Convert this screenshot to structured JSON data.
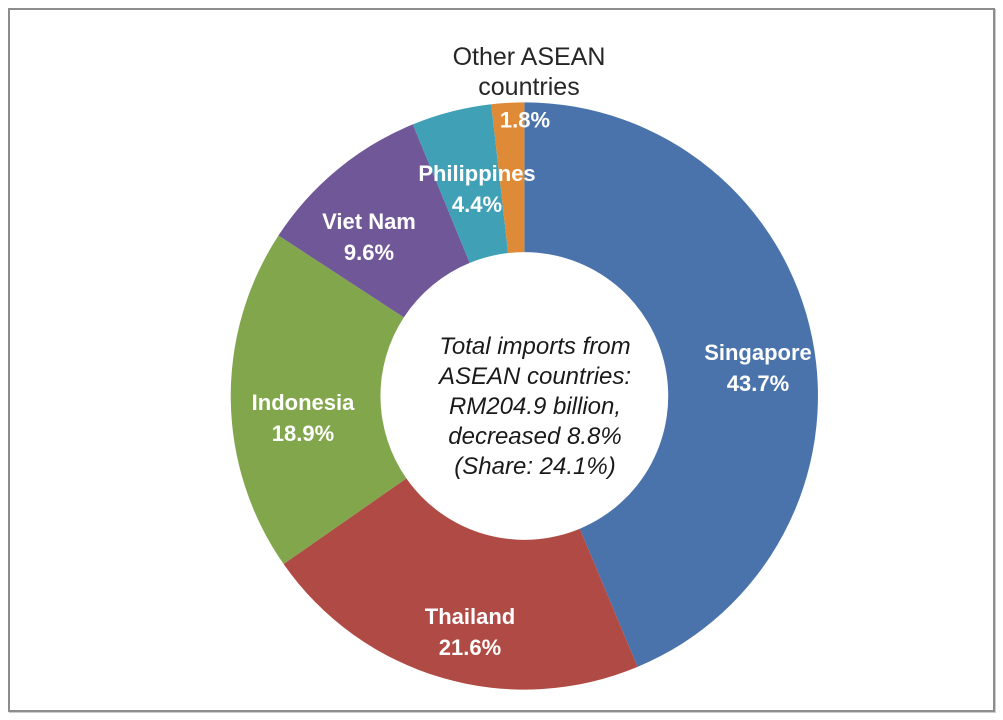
{
  "chart_data": {
    "type": "pie",
    "subtype": "donut",
    "title": "",
    "legend": "none",
    "center_label": {
      "lines": [
        "Total imports from",
        "ASEAN countries:",
        "RM204.9 billion,",
        "decreased 8.8%",
        "(Share: 24.1%)"
      ]
    },
    "slices": [
      {
        "label": "Singapore",
        "value": 43.7,
        "display": "43.7%",
        "color": "#4A73AC",
        "label_inside": true
      },
      {
        "label": "Thailand",
        "value": 21.6,
        "display": "21.6%",
        "color": "#B04A44",
        "label_inside": true
      },
      {
        "label": "Indonesia",
        "value": 18.9,
        "display": "18.9%",
        "color": "#82A64C",
        "label_inside": true
      },
      {
        "label": "Viet Nam",
        "value": 9.6,
        "display": "9.6%",
        "color": "#705797",
        "label_inside": true
      },
      {
        "label": "Philippines",
        "value": 4.4,
        "display": "4.4%",
        "color": "#3FA0B6",
        "label_inside": true
      },
      {
        "label": "Other ASEAN countries",
        "value": 1.8,
        "display": "1.8%",
        "color": "#DE8A36",
        "label_inside": false
      }
    ],
    "start_angle_deg": 0,
    "direction": "clockwise",
    "donut_hole_ratio": 0.49,
    "total": 100.0
  },
  "frame": {
    "border_color": "#8d8d8d",
    "background": "#ffffff"
  }
}
